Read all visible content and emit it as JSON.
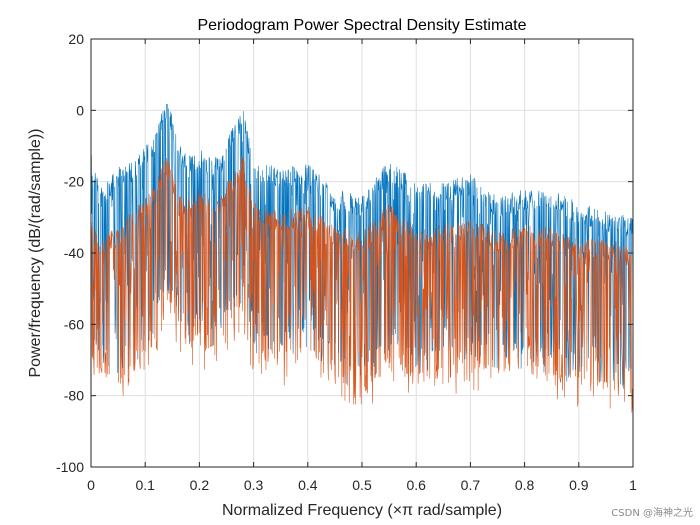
{
  "chart_data": {
    "type": "line",
    "title": "Periodogram Power Spectral Density Estimate",
    "xlabel": "Normalized Frequency  (×π rad/sample)",
    "ylabel": "Power/frequency (dB/(rad/sample))",
    "xlim": [
      0,
      1
    ],
    "ylim": [
      -100,
      20
    ],
    "xticks": [
      0,
      0.1,
      0.2,
      0.3,
      0.4,
      0.5,
      0.6,
      0.7,
      0.8,
      0.9,
      1
    ],
    "xtick_labels": [
      "0",
      "0.1",
      "0.2",
      "0.3",
      "0.4",
      "0.5",
      "0.6",
      "0.7",
      "0.8",
      "0.9",
      "1"
    ],
    "yticks": [
      20,
      0,
      -20,
      -40,
      -60,
      -80,
      -100
    ],
    "ytick_labels": [
      "20",
      "0",
      "-20",
      "-40",
      "-60",
      "-80",
      "-100"
    ],
    "grid": true,
    "series": [
      {
        "color": "#0072BD",
        "x": [
          0,
          0.02,
          0.05,
          0.08,
          0.1,
          0.12,
          0.14,
          0.16,
          0.18,
          0.2,
          0.22,
          0.24,
          0.26,
          0.28,
          0.3,
          0.35,
          0.4,
          0.45,
          0.5,
          0.55,
          0.6,
          0.65,
          0.7,
          0.75,
          0.8,
          0.85,
          0.9,
          0.95,
          1
        ],
        "upper": [
          -12,
          -22,
          -16,
          -14,
          -10,
          -6,
          5,
          -9,
          -12,
          -10,
          -13,
          -12,
          -5,
          1,
          -14,
          -16,
          -15,
          -22,
          -24,
          -14,
          -20,
          -20,
          -18,
          -24,
          -22,
          -22,
          -26,
          -28,
          -30
        ],
        "lower": [
          -62,
          -66,
          -70,
          -65,
          -60,
          -55,
          -45,
          -52,
          -58,
          -56,
          -60,
          -58,
          -52,
          -48,
          -62,
          -62,
          -60,
          -66,
          -72,
          -62,
          -68,
          -66,
          -64,
          -66,
          -64,
          -66,
          -68,
          -70,
          -72
        ]
      },
      {
        "color": "#D95319",
        "x": [
          0,
          0.02,
          0.05,
          0.08,
          0.1,
          0.12,
          0.14,
          0.16,
          0.18,
          0.2,
          0.22,
          0.24,
          0.26,
          0.28,
          0.3,
          0.35,
          0.4,
          0.45,
          0.5,
          0.55,
          0.6,
          0.65,
          0.7,
          0.75,
          0.8,
          0.85,
          0.9,
          0.95,
          1
        ],
        "upper": [
          -30,
          -36,
          -32,
          -28,
          -24,
          -20,
          -12,
          -22,
          -24,
          -22,
          -24,
          -23,
          -18,
          -12,
          -26,
          -28,
          -27,
          -32,
          -34,
          -26,
          -33,
          -32,
          -30,
          -34,
          -32,
          -33,
          -36,
          -36,
          -38
        ],
        "lower": [
          -68,
          -72,
          -76,
          -70,
          -66,
          -62,
          -50,
          -58,
          -64,
          -62,
          -66,
          -64,
          -58,
          -54,
          -68,
          -68,
          -66,
          -72,
          -80,
          -68,
          -74,
          -72,
          -70,
          -72,
          -70,
          -72,
          -74,
          -76,
          -78
        ]
      }
    ]
  },
  "watermark": "CSDN @海神之光"
}
